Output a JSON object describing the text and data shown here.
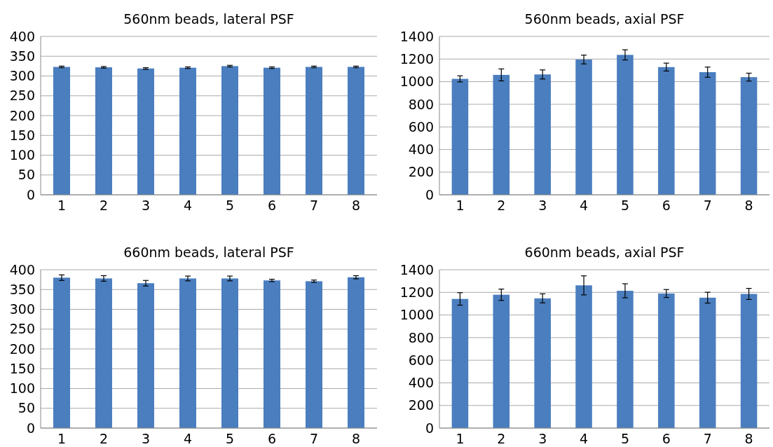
{
  "chart_data": [
    {
      "type": "bar",
      "title": "560nm beads, lateral PSF",
      "categories": [
        "1",
        "2",
        "3",
        "4",
        "5",
        "6",
        "7",
        "8"
      ],
      "values": [
        323,
        322,
        319,
        321,
        325,
        321,
        323,
        323
      ],
      "errors": [
        2,
        2,
        2,
        2,
        2,
        2,
        2,
        2
      ],
      "color": "#4a7ebf",
      "ylim": [
        0,
        400
      ],
      "yticks": [
        0,
        50,
        100,
        150,
        200,
        250,
        300,
        350,
        400
      ],
      "grid": "y"
    },
    {
      "type": "bar",
      "title": "560nm beads, axial PSF",
      "categories": [
        "1",
        "2",
        "3",
        "4",
        "5",
        "6",
        "7",
        "8"
      ],
      "values": [
        1025,
        1060,
        1064,
        1196,
        1237,
        1129,
        1084,
        1040
      ],
      "errors": [
        27,
        53,
        40,
        39,
        45,
        35,
        45,
        35
      ],
      "color": "#4a7ebf",
      "ylim": [
        0,
        1400
      ],
      "yticks": [
        0,
        200,
        400,
        600,
        800,
        1000,
        1200,
        1400
      ],
      "grid": "y"
    },
    {
      "type": "bar",
      "title": "660nm beads, lateral PSF",
      "categories": [
        "1",
        "2",
        "3",
        "4",
        "5",
        "6",
        "7",
        "8"
      ],
      "values": [
        380,
        378,
        366,
        378,
        378,
        373,
        371,
        381
      ],
      "errors": [
        7,
        7,
        7,
        6,
        6,
        3,
        3,
        4
      ],
      "color": "#4a7ebf",
      "ylim": [
        0,
        400
      ],
      "yticks": [
        0,
        50,
        100,
        150,
        200,
        250,
        300,
        350,
        400
      ],
      "grid": "y"
    },
    {
      "type": "bar",
      "title": "660nm beads, axial PSF",
      "categories": [
        "1",
        "2",
        "3",
        "4",
        "5",
        "6",
        "7",
        "8"
      ],
      "values": [
        1142,
        1179,
        1147,
        1262,
        1214,
        1190,
        1153,
        1186
      ],
      "errors": [
        55,
        50,
        40,
        84,
        62,
        35,
        48,
        49
      ],
      "color": "#4a7ebf",
      "ylim": [
        0,
        1400
      ],
      "yticks": [
        0,
        200,
        400,
        600,
        800,
        1000,
        1200,
        1400
      ],
      "grid": "y"
    }
  ]
}
